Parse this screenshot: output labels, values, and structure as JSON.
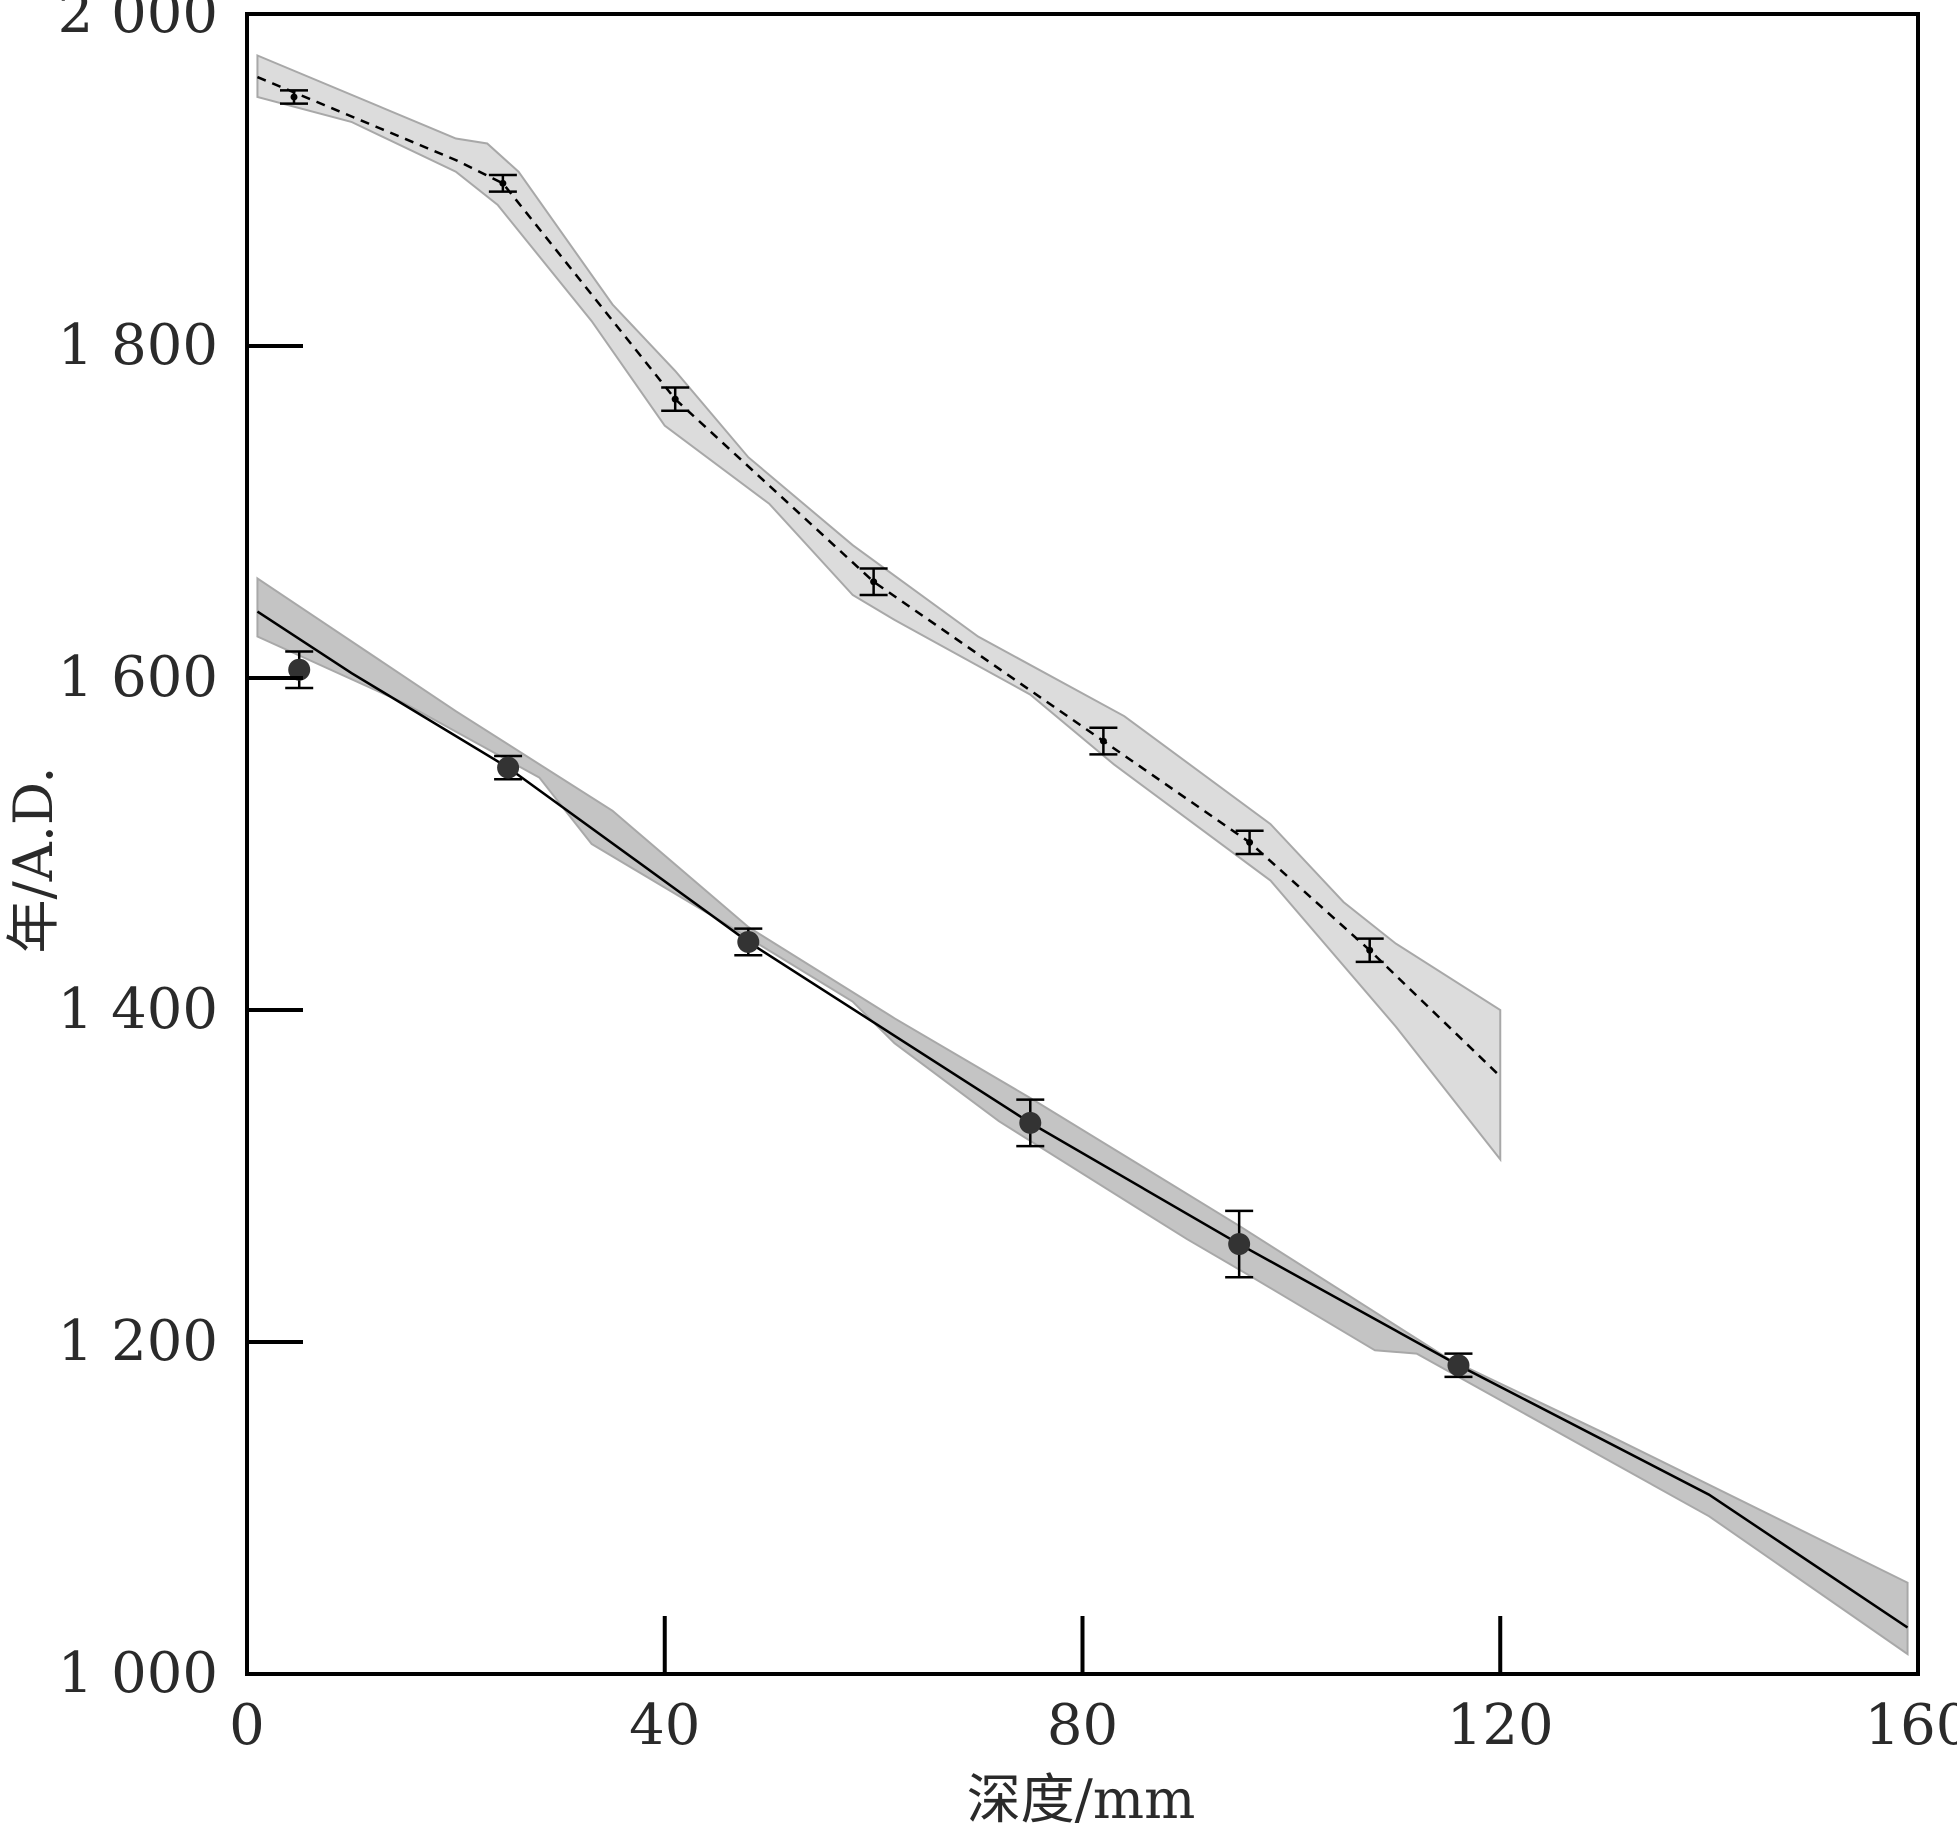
{
  "chart_data": {
    "type": "line",
    "xlabel": "深度/mm",
    "ylabel": "年/A.D.",
    "xlim": [
      0,
      160
    ],
    "ylim": [
      1000,
      2000
    ],
    "xticks": [
      0,
      40,
      80,
      120,
      160
    ],
    "yticks": [
      1000,
      1200,
      1400,
      1600,
      1800,
      2000
    ],
    "xtick_labels": [
      "0",
      "40",
      "80",
      "120",
      "160"
    ],
    "ytick_labels": [
      "1 000",
      "1 200",
      "1 400",
      "1 600",
      "1 800",
      "2 000"
    ],
    "grid": false,
    "legend": false,
    "series": [
      {
        "style": "dashed",
        "band_color": "#dcdcdc",
        "marker": "cross",
        "points": [
          {
            "x": 4.5,
            "y": 1950,
            "err": 4
          },
          {
            "x": 24.5,
            "y": 1898,
            "err": 5
          },
          {
            "x": 41,
            "y": 1768,
            "err": 7
          },
          {
            "x": 60,
            "y": 1658,
            "err": 8
          },
          {
            "x": 82,
            "y": 1562,
            "err": 8
          },
          {
            "x": 96,
            "y": 1501,
            "err": 7
          },
          {
            "x": 107.5,
            "y": 1436,
            "err": 7
          }
        ],
        "line": [
          [
            1,
            1962
          ],
          [
            20,
            1912
          ],
          [
            24.5,
            1898
          ],
          [
            41,
            1768
          ],
          [
            60,
            1658
          ],
          [
            82,
            1562
          ],
          [
            96,
            1501
          ],
          [
            107.5,
            1436
          ],
          [
            120,
            1360
          ]
        ],
        "band_upper": [
          [
            1,
            1975
          ],
          [
            20,
            1925
          ],
          [
            23,
            1922
          ],
          [
            26,
            1905
          ],
          [
            35,
            1825
          ],
          [
            41,
            1785
          ],
          [
            48,
            1733
          ],
          [
            58,
            1680
          ],
          [
            70,
            1625
          ],
          [
            84,
            1577
          ],
          [
            98,
            1512
          ],
          [
            105,
            1465
          ],
          [
            110,
            1440
          ],
          [
            120,
            1400
          ]
        ],
        "band_lower": [
          [
            1,
            1950
          ],
          [
            10,
            1935
          ],
          [
            20,
            1905
          ],
          [
            24,
            1885
          ],
          [
            33,
            1815
          ],
          [
            40,
            1752
          ],
          [
            50,
            1705
          ],
          [
            58,
            1650
          ],
          [
            62,
            1635
          ],
          [
            75,
            1590
          ],
          [
            83,
            1548
          ],
          [
            98,
            1478
          ],
          [
            110,
            1390
          ],
          [
            120,
            1310
          ]
        ]
      },
      {
        "style": "solid",
        "band_color": "#c4c4c4",
        "marker": "circle",
        "points": [
          {
            "x": 5,
            "y": 1605,
            "err": 11
          },
          {
            "x": 25,
            "y": 1546,
            "err": 7
          },
          {
            "x": 48,
            "y": 1441,
            "err": 8
          },
          {
            "x": 75,
            "y": 1332,
            "err": 14
          },
          {
            "x": 95,
            "y": 1259,
            "err": 20
          },
          {
            "x": 116,
            "y": 1186,
            "err": 7
          }
        ],
        "line": [
          [
            1,
            1640
          ],
          [
            10,
            1603
          ],
          [
            25,
            1546
          ],
          [
            48,
            1441
          ],
          [
            75,
            1332
          ],
          [
            95,
            1259
          ],
          [
            116,
            1186
          ],
          [
            140,
            1108
          ],
          [
            159,
            1028
          ]
        ],
        "band_upper": [
          [
            1,
            1660
          ],
          [
            20,
            1580
          ],
          [
            35,
            1520
          ],
          [
            48,
            1450
          ],
          [
            62,
            1395
          ],
          [
            75,
            1347
          ],
          [
            95,
            1270
          ],
          [
            115,
            1190
          ],
          [
            130,
            1145
          ],
          [
            159,
            1055
          ]
        ],
        "band_lower": [
          [
            1,
            1625
          ],
          [
            15,
            1585
          ],
          [
            28,
            1540
          ],
          [
            33,
            1500
          ],
          [
            45,
            1455
          ],
          [
            58,
            1405
          ],
          [
            62,
            1380
          ],
          [
            72,
            1333
          ],
          [
            90,
            1262
          ],
          [
            96,
            1240
          ],
          [
            108,
            1195
          ],
          [
            112,
            1193
          ],
          [
            140,
            1095
          ],
          [
            159,
            1012
          ]
        ]
      }
    ]
  }
}
